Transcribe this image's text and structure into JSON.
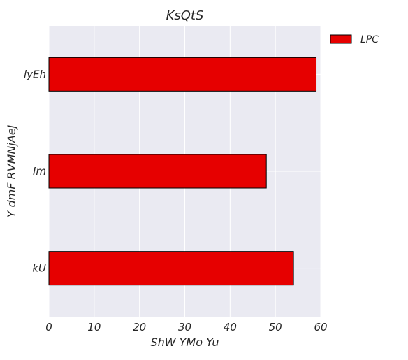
{
  "chart_data": {
    "type": "bar",
    "orientation": "horizontal",
    "title": "KsQtS",
    "xlabel": "ShW YMo Yu",
    "ylabel": "Y dmF RVMNjAeJ",
    "categories": [
      "lyEh",
      "Im",
      "kU"
    ],
    "series": [
      {
        "name": "LPC",
        "values": [
          59,
          48,
          54
        ],
        "color": "#e60000"
      }
    ],
    "xlim": [
      0,
      60
    ],
    "xticks": [
      0,
      10,
      20,
      30,
      40,
      50,
      60
    ],
    "grid": true,
    "legend_position": "outside-top-right",
    "plot_background": "#eaeaf2",
    "grid_color": "#ffffff",
    "bar_edge_color": "#000000"
  }
}
